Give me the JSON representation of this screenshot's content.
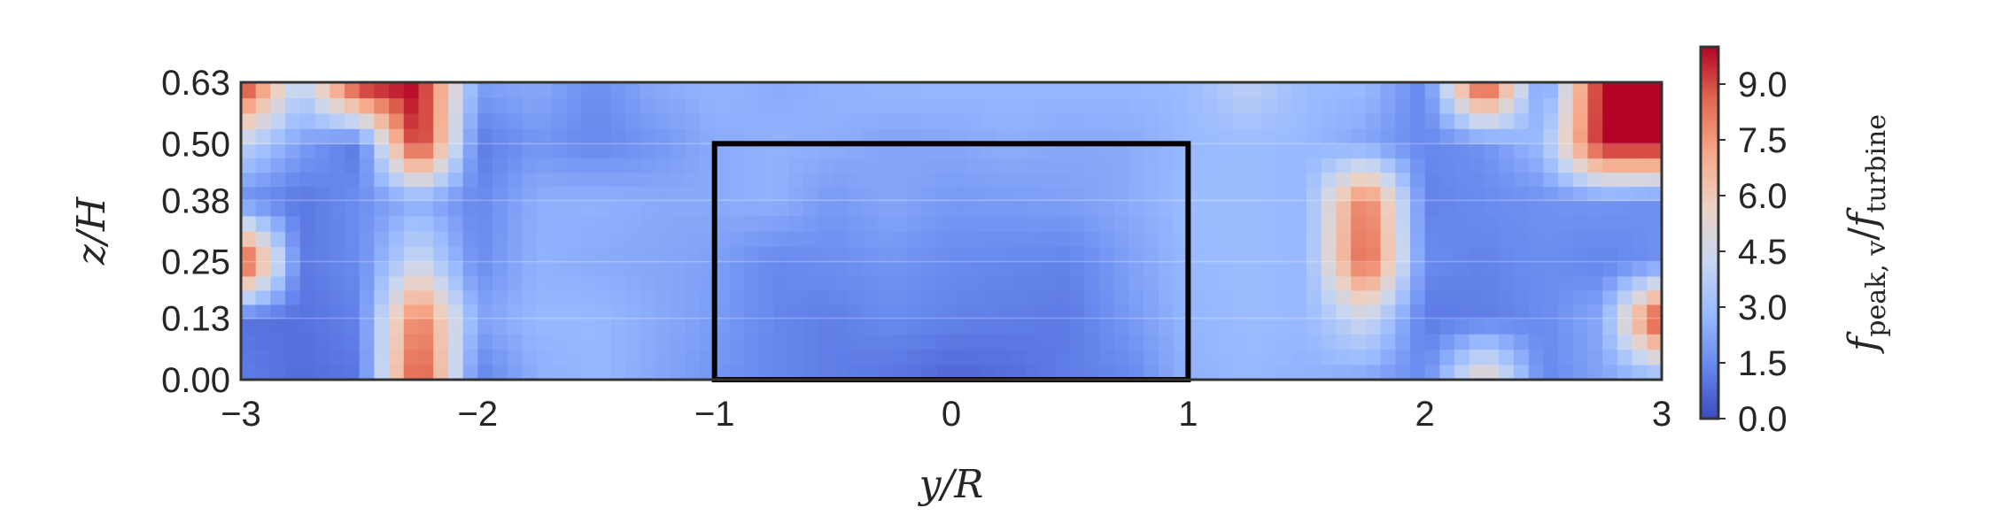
{
  "chart_data": {
    "type": "heatmap",
    "title": "",
    "xlabel": "y/R",
    "ylabel": "z/H",
    "colorbar_label_parts": [
      "f",
      "peak, v",
      "/",
      "f",
      "turbine"
    ],
    "xlim": [
      -3,
      3
    ],
    "ylim": [
      0,
      0.63
    ],
    "x_ticks": [
      -3,
      -2,
      -1,
      0,
      1,
      2,
      3
    ],
    "x_tick_labels": [
      "−3",
      "−2",
      "−1",
      "0",
      "1",
      "2",
      "3"
    ],
    "y_ticks": [
      0.0,
      0.13,
      0.25,
      0.38,
      0.5,
      0.63
    ],
    "y_tick_labels": [
      "0.00",
      "0.13",
      "0.25",
      "0.38",
      "0.50",
      "0.63"
    ],
    "colorbar_range": [
      0,
      10
    ],
    "colorbar_ticks": [
      0,
      1.5,
      3,
      4.5,
      6,
      7.5,
      9
    ],
    "colorbar_tick_labels": [
      "0.0",
      "1.5",
      "3.0",
      "4.5",
      "6.0",
      "7.5",
      "9.0"
    ],
    "colormap": [
      "#3b4cc0",
      "#6788ee",
      "#9abbff",
      "#c9d7f0",
      "#edd1c2",
      "#f7a889",
      "#e26952",
      "#b40426"
    ],
    "turbine_outline": {
      "y_range": [
        -1,
        1
      ],
      "z_range": [
        0,
        0.5
      ]
    },
    "grid": true,
    "field": {
      "y": [
        -3,
        -2.75,
        -2.5,
        -2.25,
        -2,
        -1.75,
        -1.5,
        -1.25,
        -1,
        -0.75,
        -0.5,
        -0.25,
        0,
        0.25,
        0.5,
        0.75,
        1,
        1.25,
        1.5,
        1.75,
        2,
        2.25,
        2.5,
        2.75,
        3
      ],
      "z": [
        0.0,
        0.13,
        0.25,
        0.38,
        0.5,
        0.63
      ],
      "values": [
        [
          1.2,
          0.8,
          1.0,
          9.5,
          1.2,
          2.5,
          2.8,
          2.3,
          1.8,
          1.4,
          1.2,
          1.0,
          0.6,
          0.8,
          1.2,
          1.4,
          2.6,
          2.8,
          2.6,
          2.2,
          1.5,
          6.0,
          1.4,
          2.2,
          2.6
        ],
        [
          0.9,
          0.9,
          1.3,
          8.5,
          2.2,
          2.8,
          2.8,
          2.4,
          2.0,
          1.4,
          1.2,
          1.5,
          1.3,
          1.2,
          1.1,
          1.9,
          2.7,
          2.9,
          2.8,
          4.5,
          1.1,
          1.2,
          1.5,
          2.4,
          10.0
        ],
        [
          10.0,
          1.1,
          1.5,
          4.5,
          1.5,
          2.6,
          2.4,
          2.3,
          2.1,
          1.4,
          1.6,
          1.8,
          1.5,
          1.4,
          1.3,
          2.1,
          2.8,
          2.9,
          2.8,
          9.0,
          1.5,
          1.3,
          1.6,
          1.3,
          1.7
        ],
        [
          1.6,
          1.0,
          1.6,
          2.5,
          1.4,
          2.5,
          2.6,
          2.4,
          2.4,
          2.6,
          1.9,
          2.3,
          1.9,
          2.0,
          2.1,
          2.4,
          2.9,
          2.9,
          2.8,
          8.5,
          1.3,
          1.5,
          1.7,
          1.8,
          1.6
        ],
        [
          4.0,
          2.1,
          1.0,
          10.0,
          1.1,
          1.8,
          1.4,
          1.8,
          2.4,
          2.6,
          2.5,
          2.2,
          2.3,
          2.5,
          2.3,
          2.4,
          2.8,
          2.9,
          2.8,
          2.2,
          1.4,
          1.7,
          3.0,
          10.0,
          10.0
        ],
        [
          10.0,
          3.8,
          10.0,
          10.0,
          2.1,
          2.4,
          1.6,
          2.4,
          2.7,
          2.4,
          2.6,
          2.8,
          2.8,
          2.8,
          2.8,
          2.8,
          2.9,
          4.0,
          2.9,
          2.9,
          1.3,
          10.0,
          1.5,
          10.0,
          10.0
        ]
      ]
    }
  }
}
